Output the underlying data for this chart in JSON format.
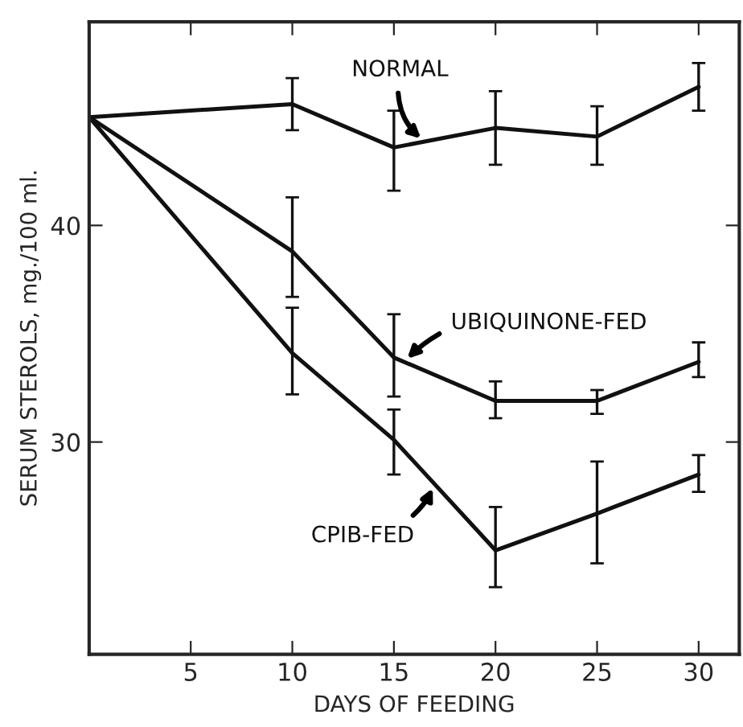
{
  "chart_data": {
    "type": "line",
    "xlabel": "DAYS OF FEEDING",
    "ylabel": "SERUM STEROLS, mg./100 ml.",
    "x": [
      0,
      10,
      15,
      20,
      25,
      30
    ],
    "series": [
      {
        "name": "NORMAL",
        "color": "#111111",
        "values": [
          45.0,
          45.6,
          43.6,
          44.5,
          44.1,
          46.4
        ],
        "errors": [
          null,
          [
            44.4,
            46.8
          ],
          [
            41.6,
            45.3
          ],
          [
            42.8,
            46.2
          ],
          [
            42.8,
            45.5
          ],
          [
            45.3,
            47.5
          ]
        ]
      },
      {
        "name": "UBIQUINONE-FED",
        "color": "#111111",
        "values": [
          45.0,
          38.8,
          33.9,
          31.9,
          31.9,
          33.7
        ],
        "errors": [
          null,
          [
            36.7,
            41.3
          ],
          [
            32.1,
            35.9
          ],
          [
            31.1,
            32.8
          ],
          [
            31.3,
            32.4
          ],
          [
            33.0,
            34.6
          ]
        ]
      },
      {
        "name": "CPIB-FED",
        "color": "#111111",
        "values": [
          45.0,
          34.1,
          30.1,
          25.0,
          26.7,
          28.5
        ],
        "errors": [
          null,
          [
            32.2,
            36.2
          ],
          [
            28.5,
            31.5
          ],
          [
            23.3,
            27.0
          ],
          [
            24.4,
            29.1
          ],
          [
            27.7,
            29.4
          ]
        ]
      }
    ],
    "xlim": [
      0,
      32
    ],
    "xticks": [
      5,
      10,
      15,
      20,
      25,
      30
    ],
    "ylim": [
      20.2,
      49.4
    ],
    "yticks": [
      30,
      40
    ],
    "grid": false,
    "legend": false,
    "marker": "none",
    "line_style": "solid"
  }
}
